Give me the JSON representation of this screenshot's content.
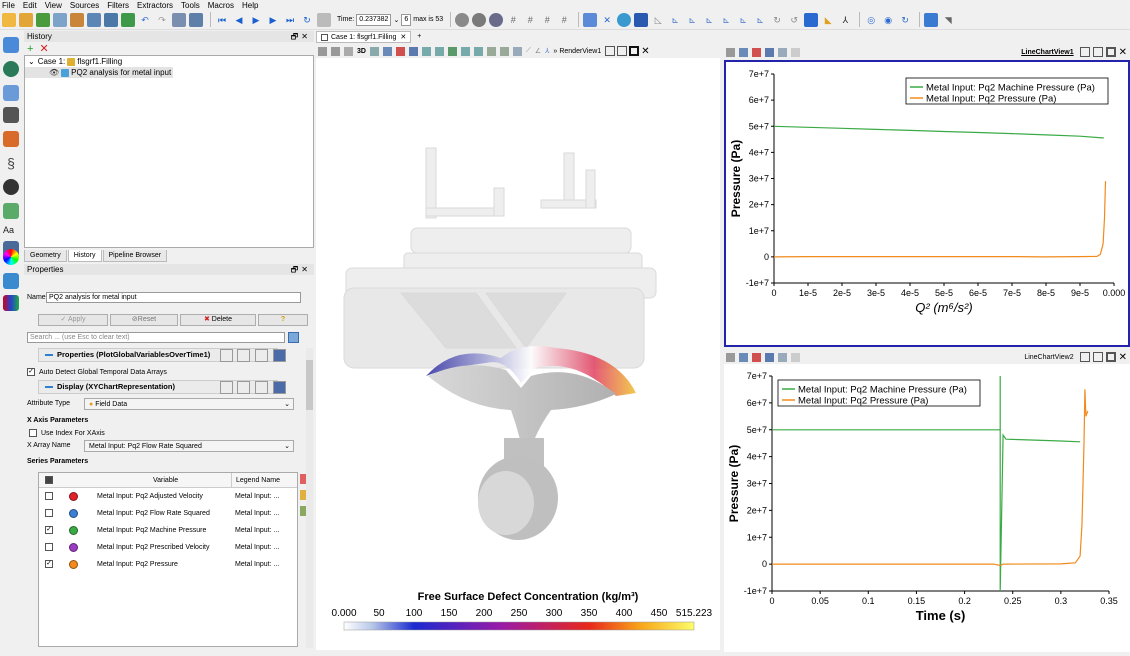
{
  "menu": [
    "File",
    "Edit",
    "View",
    "Sources",
    "Filters",
    "Extractors",
    "Tools",
    "Macros",
    "Help"
  ],
  "toolbar": {
    "time_label": "Time:",
    "time_value": "0.237382",
    "timestep_value": "6",
    "max_label": "max is 53"
  },
  "history": {
    "title": "History",
    "case_label": "Case 1:",
    "case_name": "flsgrf1.Filling",
    "item_name": "PQ2 analysis for metal input"
  },
  "panel_tabs": [
    "Geometry",
    "History",
    "Pipeline Browser"
  ],
  "properties": {
    "title": "Properties",
    "name_label": "Name",
    "name_value": "PQ2 analysis for metal input",
    "apply_label": "Apply",
    "reset_label": "Reset",
    "delete_label": "Delete",
    "help_label": "?",
    "search_placeholder": "Search ... (use Esc to clear text)",
    "section_properties": "Properties (PlotGlobalVariablesOverTime1)",
    "auto_detect_label": "Auto Detect Global Temporal Data Arrays",
    "section_display": "Display (XYChartRepresentation)",
    "attribute_type_label": "Attribute Type",
    "attribute_type_value": "Field Data",
    "x_axis_params": "X Axis Parameters",
    "use_index_label": "Use Index For XAxis",
    "x_array_label": "X Array Name",
    "x_array_value": "Metal Input: Pq2 Flow Rate Squared",
    "series_params": "Series Parameters",
    "series_header_variable": "Variable",
    "series_header_legend": "Legend Name",
    "series": [
      {
        "checked": false,
        "color": "#e0202a",
        "variable": "Metal Input: Pq2 Adjusted Velocity",
        "legend": "Metal Input: ..."
      },
      {
        "checked": false,
        "color": "#3b7fd4",
        "variable": "Metal Input: Pq2 Flow Rate Squared",
        "legend": "Metal Input: ..."
      },
      {
        "checked": true,
        "color": "#3aaa45",
        "variable": "Metal Input: Pq2 Machine Pressure",
        "legend": "Metal Input: ..."
      },
      {
        "checked": false,
        "color": "#9b3cc4",
        "variable": "Metal Input: Pq2 Prescribed Velocity",
        "legend": "Metal Input: ..."
      },
      {
        "checked": true,
        "color": "#f28a1c",
        "variable": "Metal Input: Pq2 Pressure",
        "legend": "Metal Input: ..."
      }
    ]
  },
  "render": {
    "tab_label": "Case 1: flsgrf1.Filling",
    "view_label": "RenderView1",
    "colorbar_title": "Free Surface Defect Concentration (kg/m³)",
    "colorbar_ticks": [
      "0.000",
      "50",
      "100",
      "150",
      "200",
      "250",
      "300",
      "350",
      "400",
      "450",
      "515.223"
    ]
  },
  "chart_data": [
    {
      "type": "line",
      "view_label": "LineChartView1",
      "xlabel": "Q² (m⁶/s²)",
      "ylabel": "Pressure (Pa)",
      "xlim": [
        0,
        0.0001
      ],
      "ylim": [
        -10000000,
        70000000
      ],
      "x_ticks": [
        "0",
        "1e-5",
        "2e-5",
        "3e-5",
        "4e-5",
        "5e-5",
        "6e-5",
        "7e-5",
        "8e-5",
        "9e-5",
        "0.000"
      ],
      "y_ticks": [
        "-1e+7",
        "0",
        "1e+7",
        "2e+7",
        "3e+7",
        "4e+7",
        "5e+7",
        "6e+7",
        "7e+7"
      ],
      "legend_position": "top-right",
      "series": [
        {
          "name": "Metal Input: Pq2 Machine Pressure  (Pa)",
          "color": "#3aaa45",
          "x": [
            0,
            1e-05,
            2e-05,
            3e-05,
            4e-05,
            5e-05,
            6e-05,
            7e-05,
            8e-05,
            9e-05,
            9.7e-05
          ],
          "y": [
            50000000,
            49600000,
            49200000,
            48800000,
            48400000,
            48000000,
            47600000,
            47200000,
            46700000,
            46200000,
            45500000
          ]
        },
        {
          "name": "Metal Input: Pq2 Pressure  (Pa)",
          "color": "#f28a1c",
          "x": [
            0,
            1e-05,
            3e-05,
            5e-05,
            7e-05,
            7.9e-05,
            9e-05,
            9.5e-05,
            9.6e-05,
            9.68e-05,
            9.72e-05,
            9.75e-05
          ],
          "y": [
            0,
            100000,
            100000,
            100000,
            100000,
            0,
            100000,
            200000,
            1000000,
            5000000,
            15000000,
            29000000
          ]
        }
      ]
    },
    {
      "type": "line",
      "view_label": "LineChartView2",
      "xlabel": "Time (s)",
      "ylabel": "Pressure (Pa)",
      "xlim": [
        0,
        0.35
      ],
      "ylim": [
        -10000000,
        70000000
      ],
      "x_ticks": [
        "0",
        "0.05",
        "0.1",
        "0.15",
        "0.2",
        "0.25",
        "0.3",
        "0.35"
      ],
      "y_ticks": [
        "-1e+7",
        "0",
        "1e+7",
        "2e+7",
        "3e+7",
        "4e+7",
        "5e+7",
        "6e+7",
        "7e+7"
      ],
      "legend_position": "top-left",
      "series": [
        {
          "name": "Metal Input: Pq2 Machine Pressure  (Pa)",
          "color": "#3aaa45",
          "x": [
            0,
            0.235,
            0.237,
            0.237,
            0.237,
            0.24,
            0.243,
            0.25,
            0.3,
            0.32
          ],
          "y": [
            50000000,
            50000000,
            50000000,
            70000000,
            -10000000,
            48000000,
            46500000,
            46400000,
            45800000,
            45500000
          ]
        },
        {
          "name": "Metal Input: Pq2 Pressure  (Pa)",
          "color": "#f28a1c",
          "x": [
            0,
            0.23,
            0.237,
            0.24,
            0.3,
            0.315,
            0.32,
            0.322,
            0.324,
            0.325,
            0.326,
            0.328
          ],
          "y": [
            0,
            0,
            -500000,
            0,
            100000,
            500000,
            3000000,
            15000000,
            45000000,
            65000000,
            55000000,
            57000000
          ]
        }
      ]
    }
  ]
}
